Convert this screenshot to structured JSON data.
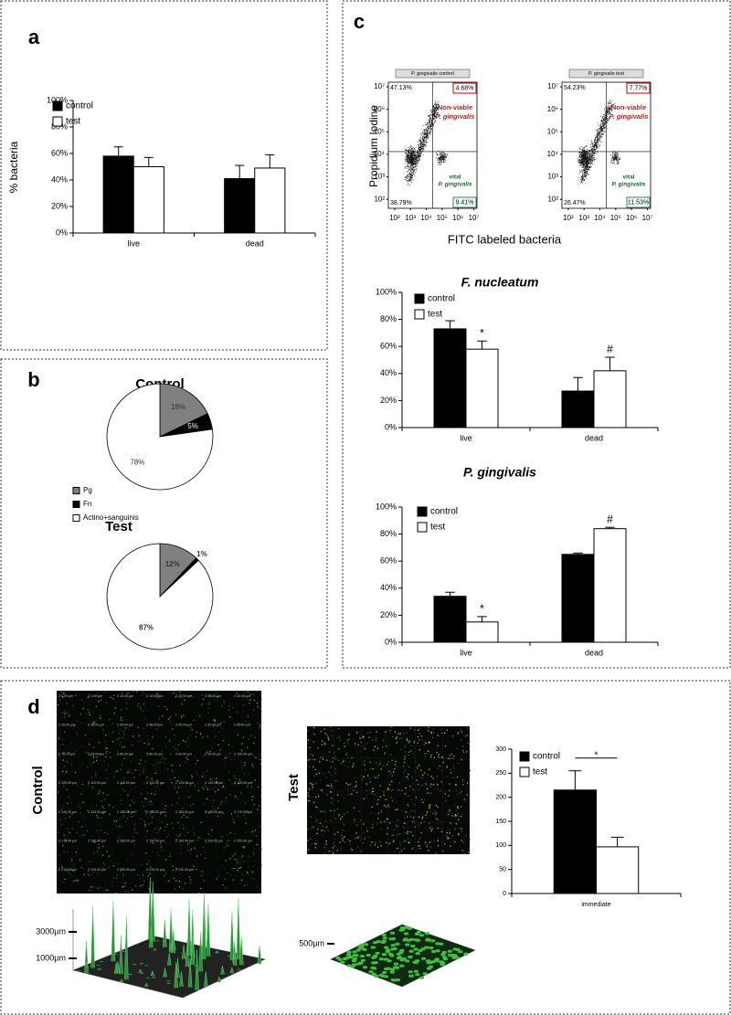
{
  "chart_data": [
    {
      "type": "bar",
      "panel": "a",
      "y_label": "% bacteria",
      "categories": [
        "live",
        "dead"
      ],
      "series": [
        {
          "name": "control",
          "color": "#000000",
          "values": [
            58,
            41
          ],
          "errors": [
            7,
            10
          ]
        },
        {
          "name": "test",
          "color": "#ffffff",
          "values": [
            50,
            49
          ],
          "errors": [
            7,
            10
          ]
        }
      ],
      "ylim": [
        0,
        100
      ],
      "yticks": [
        {
          "value": 0,
          "label": "0%"
        },
        {
          "value": 20,
          "label": "20%"
        },
        {
          "value": 40,
          "label": "40%"
        },
        {
          "value": 60,
          "label": "60%"
        },
        {
          "value": 80,
          "label": "80%"
        },
        {
          "value": 100,
          "label": "100%"
        }
      ]
    },
    {
      "type": "pie",
      "panel": "b",
      "categories": [
        "Pg",
        "Fn",
        "Actino+sanguinis"
      ],
      "colors": [
        "#808080",
        "#000000",
        "#ffffff"
      ],
      "series": [
        {
          "name": "Control",
          "values": [
            18,
            5,
            78
          ],
          "value_labels": [
            "18%",
            "5%",
            "78%"
          ]
        },
        {
          "name": "Test",
          "values": [
            12,
            1,
            87
          ],
          "value_labels": [
            "12%",
            "1%",
            "87%"
          ]
        }
      ]
    },
    {
      "type": "bar",
      "title": "F. nucleatum",
      "categories": [
        "live",
        "dead"
      ],
      "series": [
        {
          "name": "control",
          "color": "#000000",
          "values": [
            73,
            27
          ],
          "errors": [
            6,
            10
          ]
        },
        {
          "name": "test",
          "color": "#ffffff",
          "values": [
            58,
            42
          ],
          "errors": [
            6,
            10
          ]
        }
      ],
      "annotations": [
        "*",
        "#"
      ],
      "ylim": [
        0,
        100
      ],
      "yticks": [
        {
          "value": 0,
          "label": "0%"
        },
        {
          "value": 20,
          "label": "20%"
        },
        {
          "value": 40,
          "label": "40%"
        },
        {
          "value": 60,
          "label": "60%"
        },
        {
          "value": 80,
          "label": "80%"
        },
        {
          "value": 100,
          "label": "100%"
        }
      ]
    },
    {
      "type": "bar",
      "title": "P. gingivalis",
      "categories": [
        "live",
        "dead"
      ],
      "series": [
        {
          "name": "control",
          "color": "#000000",
          "values": [
            34,
            65
          ],
          "errors": [
            3,
            1
          ]
        },
        {
          "name": "test",
          "color": "#ffffff",
          "values": [
            15,
            84
          ],
          "errors": [
            4,
            1
          ]
        }
      ],
      "annotations": [
        "*",
        "#"
      ],
      "ylim": [
        0,
        100
      ],
      "yticks": [
        {
          "value": 0,
          "label": "0%"
        },
        {
          "value": 20,
          "label": "20%"
        },
        {
          "value": 40,
          "label": "40%"
        },
        {
          "value": 60,
          "label": "60%"
        },
        {
          "value": 80,
          "label": "80%"
        },
        {
          "value": 100,
          "label": "100%"
        }
      ]
    },
    {
      "type": "bar",
      "panel": "d",
      "categories": [
        "immediate"
      ],
      "series": [
        {
          "name": "control",
          "color": "#000000",
          "values": [
            215
          ],
          "errors": [
            40
          ]
        },
        {
          "name": "test",
          "color": "#ffffff",
          "values": [
            97
          ],
          "errors": [
            20
          ]
        }
      ],
      "annotations": [
        "*"
      ],
      "ylim": [
        0,
        300
      ],
      "yticks": [
        0,
        50,
        100,
        150,
        200,
        250,
        300
      ]
    }
  ],
  "flow_cytometry": {
    "panel": "c",
    "x_label": "FITC labeled bacteria",
    "y_label": "Propidium Iodine",
    "log": true,
    "lim": [
      40,
      16000000
    ],
    "ticks": [
      {
        "value": 100,
        "label": "10²"
      },
      {
        "value": 1000,
        "label": "10³"
      },
      {
        "value": 10000,
        "label": "10⁴"
      },
      {
        "value": 100000,
        "label": "10⁵"
      },
      {
        "value": 1000000,
        "label": "10⁶"
      },
      {
        "value": 10000000,
        "label": "10⁷"
      }
    ],
    "nonviable_label": [
      "Non-viable",
      "P. gingivalis"
    ],
    "vital_label": [
      "vital",
      "P. gingivalis"
    ],
    "plots": [
      {
        "title": "P. gingivalis control",
        "quadrants": [
          "47.13%",
          "4.68%",
          "38.79%",
          "9.41%"
        ]
      },
      {
        "title": "P. gingivalis test",
        "quadrants": [
          "54.23%",
          "7.77%",
          "26.47%",
          "11.53%"
        ]
      }
    ]
  },
  "confocal": [
    {
      "label": "Control",
      "scale_labels": [
        "3000µm",
        "1000µm"
      ],
      "slices": [
        "Z 0.00 µm",
        "Z 5.00 µm",
        "Z 10.00 µm",
        "Z 15.00 µm",
        "Z 20.00 µm",
        "Z 25.00 µm",
        "Z 30.00 µm",
        "Z 35.00 µm",
        "Z 40.00 µm",
        "Z 45.00 µm",
        "Z 50.00 µm",
        "Z 55.00 µm",
        "Z 60.00 µm",
        "Z 65.00 µm",
        "Z 70.00 µm",
        "Z 75.00 µm",
        "Z 80.00 µm",
        "Z 85.00 µm",
        "Z 90.00 µm",
        "Z 95.00 µm",
        "Z 100.00 µm",
        "Z 105.00 µm",
        "Z 110.00 µm",
        "Z 115.00 µm",
        "Z 120.00 µm",
        "Z 125.00 µm",
        "Z 130.00 µm",
        "Z 135.00 µm",
        "Z 140.00 µm",
        "Z 145.00 µm",
        "Z 150.00 µm",
        "Z 155.00 µm",
        "Z 160.00 µm",
        "Z 165.00 µm",
        "Z 170.00 µm",
        "Z 175.00 µm",
        "Z 180.00 µm",
        "Z 185.00 µm",
        "Z 190.00 µm",
        "Z 195.00 µm",
        "Z 200.00 µm",
        "Z 205.00 µm",
        "Z 210.00 µm",
        "Z 215.00 µm",
        "Z 220.00 µm",
        "Z 225.00 µm",
        "Z 230.00 µm"
      ]
    },
    {
      "label": "Test",
      "scale_labels": [
        "500µm"
      ]
    }
  ]
}
